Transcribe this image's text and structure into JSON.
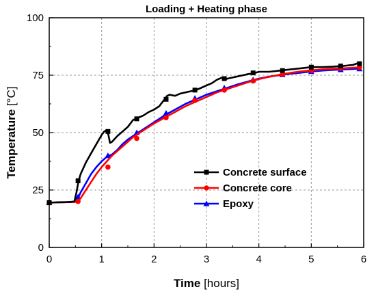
{
  "chart_data": {
    "type": "line",
    "title": "Loading + Heating phase",
    "xlabel": "Time",
    "xlabel_unit": "[hours]",
    "ylabel": "Temperature",
    "ylabel_unit": "[°C]",
    "xlim": [
      0,
      6
    ],
    "ylim": [
      0,
      100
    ],
    "xticks": [
      0,
      1,
      2,
      3,
      4,
      5,
      6
    ],
    "yticks": [
      0,
      25,
      50,
      75,
      100
    ],
    "grid": true,
    "legend_position": "bottom-right",
    "series": [
      {
        "name": "Concrete surface",
        "color": "#000000",
        "marker": "square",
        "x": [
          0,
          0.2,
          0.4,
          0.48,
          0.52,
          0.56,
          0.6,
          0.7,
          0.8,
          0.9,
          1.0,
          1.05,
          1.1,
          1.13,
          1.16,
          1.2,
          1.3,
          1.4,
          1.5,
          1.6,
          1.7,
          1.8,
          1.9,
          2.0,
          2.1,
          2.15,
          2.2,
          2.25,
          2.3,
          2.4,
          2.5,
          2.6,
          2.7,
          2.8,
          2.9,
          3.0,
          3.1,
          3.2,
          3.3,
          3.35,
          3.4,
          3.5,
          3.6,
          3.7,
          3.8,
          3.9,
          4.0,
          4.2,
          4.4,
          4.6,
          4.8,
          5.0,
          5.2,
          5.4,
          5.6,
          5.8,
          5.92
        ],
        "y": [
          19.5,
          19.7,
          19.8,
          20,
          24,
          29,
          32,
          37,
          41,
          45,
          49,
          50.5,
          51,
          49,
          45.5,
          46,
          48.5,
          50.5,
          52.5,
          55.5,
          56.5,
          57.5,
          59,
          60,
          61.5,
          63,
          64.5,
          66,
          66.5,
          66,
          67,
          67.5,
          68,
          68.5,
          69.5,
          70.5,
          71.5,
          73,
          74,
          73,
          73.5,
          74,
          74.5,
          75,
          75.5,
          75.8,
          76.5,
          76.5,
          77,
          77.5,
          78,
          78.5,
          78.5,
          78.7,
          79,
          79.5,
          80.5
        ],
        "markers_x": [
          0,
          0.55,
          1.12,
          1.67,
          2.23,
          2.78,
          3.34,
          3.89,
          4.45,
          5.0,
          5.56,
          5.92
        ],
        "markers_y": [
          19.5,
          29,
          50.5,
          56,
          64.5,
          68.5,
          73.5,
          76,
          77,
          78.5,
          79,
          80
        ]
      },
      {
        "name": "Concrete core",
        "color": "#ff0000",
        "marker": "circle",
        "x": [
          0,
          0.3,
          0.5,
          0.55,
          0.6,
          0.7,
          0.8,
          0.9,
          1.0,
          1.1,
          1.2,
          1.3,
          1.4,
          1.5,
          1.6,
          1.7,
          1.8,
          2.0,
          2.2,
          2.4,
          2.6,
          2.8,
          3.0,
          3.2,
          3.4,
          3.6,
          3.8,
          4.0,
          4.2,
          4.4,
          4.6,
          4.8,
          5.0,
          5.2,
          5.4,
          5.6,
          5.8,
          5.92
        ],
        "y": [
          19.5,
          19.7,
          19.8,
          20,
          21.5,
          25,
          28.5,
          32,
          35,
          37.5,
          40,
          42,
          44,
          46,
          48,
          49.5,
          51,
          54,
          56.5,
          59,
          61.5,
          63.5,
          65.5,
          67.5,
          69,
          70.5,
          72,
          73.3,
          74.3,
          75.2,
          76,
          76.6,
          77.1,
          77.5,
          77.8,
          78,
          78.2,
          78.4
        ],
        "markers_x": [
          0,
          0.55,
          1.12,
          1.67,
          2.23,
          2.78,
          3.34,
          3.89,
          4.45,
          5.0,
          5.56,
          5.92
        ],
        "markers_y": [
          19.5,
          20,
          35,
          47.5,
          56.5,
          64,
          68.5,
          72.5,
          75.3,
          77,
          78,
          78.4
        ]
      },
      {
        "name": "Epoxy",
        "color": "#0000ff",
        "marker": "triangle",
        "x": [
          0,
          0.3,
          0.5,
          0.55,
          0.6,
          0.7,
          0.8,
          0.9,
          1.0,
          1.1,
          1.2,
          1.3,
          1.4,
          1.5,
          1.6,
          1.7,
          1.8,
          2.0,
          2.2,
          2.4,
          2.6,
          2.8,
          3.0,
          3.2,
          3.4,
          3.6,
          3.8,
          4.0,
          4.2,
          4.4,
          4.6,
          4.8,
          5.0,
          5.2,
          5.4,
          5.6,
          5.8,
          5.92
        ],
        "y": [
          19.5,
          19.7,
          20,
          21.5,
          24,
          28,
          32,
          35,
          37.5,
          39.5,
          40.5,
          42.5,
          45,
          47,
          48.5,
          50,
          51.5,
          54.5,
          57.5,
          60,
          62.5,
          64.5,
          66.5,
          68,
          69.5,
          71,
          72.3,
          73.5,
          74.4,
          75,
          75.6,
          76.1,
          76.6,
          77,
          77.3,
          77.5,
          77.7,
          77.9
        ],
        "markers_x": [
          0,
          0.55,
          1.12,
          1.67,
          2.23,
          2.78,
          3.34,
          3.89,
          4.45,
          5.0,
          5.56,
          5.92
        ],
        "markers_y": [
          19.5,
          22,
          40,
          50,
          58.5,
          65,
          69.5,
          73,
          75.2,
          76.6,
          77.4,
          77.8
        ]
      }
    ]
  }
}
